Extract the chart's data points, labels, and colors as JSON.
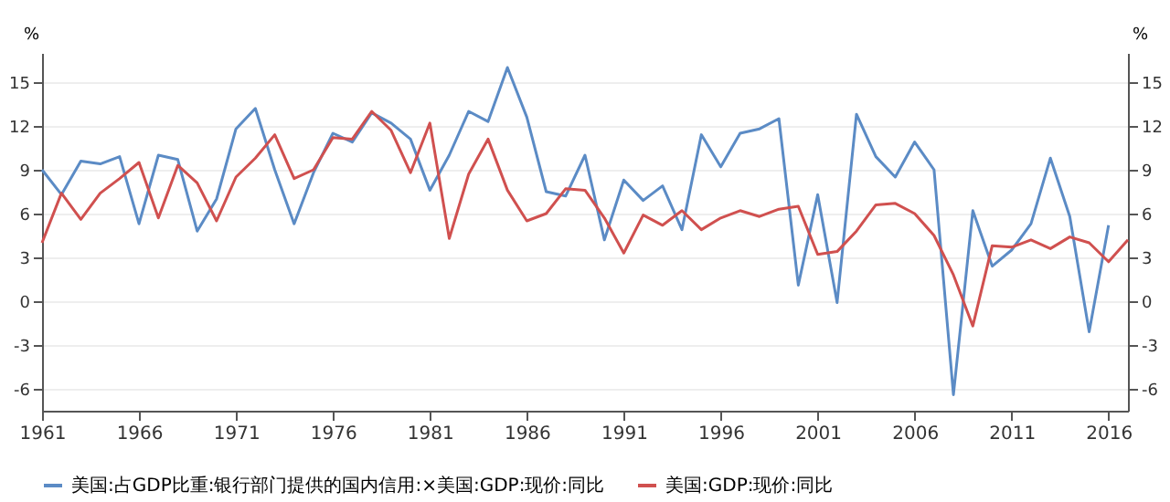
{
  "chart_data": {
    "type": "line",
    "ylabel": "%",
    "y2label": "%",
    "x": [
      1961,
      1962,
      1963,
      1964,
      1965,
      1966,
      1967,
      1968,
      1969,
      1970,
      1971,
      1972,
      1973,
      1974,
      1975,
      1976,
      1977,
      1978,
      1979,
      1980,
      1981,
      1982,
      1983,
      1984,
      1985,
      1986,
      1987,
      1988,
      1989,
      1990,
      1991,
      1992,
      1993,
      1994,
      1995,
      1996,
      1997,
      1998,
      1999,
      2000,
      2001,
      2002,
      2003,
      2004,
      2005,
      2006,
      2007,
      2008,
      2009,
      2010,
      2011,
      2012,
      2013,
      2014,
      2015,
      2016,
      2017
    ],
    "series": [
      {
        "name": "美国:占GDP比重:银行部门提供的国内信用:×美国:GDP:现价:同比",
        "color": "#5b8bc5",
        "values": [
          9.0,
          7.3,
          9.6,
          9.4,
          9.9,
          5.3,
          10.0,
          9.7,
          4.8,
          7.0,
          11.8,
          13.2,
          9.0,
          5.3,
          8.8,
          11.5,
          10.9,
          12.9,
          12.2,
          11.1,
          7.6,
          10.0,
          13.0,
          12.3,
          16.0,
          12.6,
          7.5,
          7.2,
          10.0,
          4.2,
          8.3,
          6.9,
          7.9,
          4.9,
          11.4,
          9.2,
          11.5,
          11.8,
          12.5,
          1.1,
          7.3,
          -0.1,
          12.8,
          9.9,
          8.5,
          10.9,
          9.0,
          -6.4,
          6.2,
          2.4,
          3.5,
          5.3,
          9.8,
          5.8,
          -2.1,
          5.2,
          null
        ]
      },
      {
        "name": "美国:GDP:现价:同比",
        "color": "#d0504f",
        "axis": "y2",
        "values": [
          4.0,
          7.4,
          5.6,
          7.4,
          8.4,
          9.5,
          5.7,
          9.3,
          8.1,
          5.5,
          8.5,
          9.8,
          11.4,
          8.4,
          9.0,
          11.2,
          11.1,
          13.0,
          11.7,
          8.8,
          12.2,
          4.3,
          8.7,
          11.1,
          7.6,
          5.5,
          6.0,
          7.7,
          7.6,
          5.7,
          3.3,
          5.9,
          5.2,
          6.2,
          4.9,
          5.7,
          6.2,
          5.8,
          6.3,
          6.5,
          3.2,
          3.4,
          4.8,
          6.6,
          6.7,
          6.0,
          4.5,
          1.8,
          -1.7,
          3.8,
          3.7,
          4.2,
          3.6,
          4.4,
          4.0,
          2.7,
          4.2
        ]
      }
    ],
    "xlim": [
      1961,
      2017
    ],
    "xticks": [
      1961,
      1966,
      1971,
      1976,
      1981,
      1986,
      1991,
      1996,
      2001,
      2006,
      2011,
      2016
    ],
    "ylim": [
      -7.5,
      17
    ],
    "yticks": [
      -6,
      -3,
      0,
      3,
      6,
      9,
      12,
      15
    ],
    "y2lim": [
      -7.5,
      17
    ],
    "y2ticks": [
      -6,
      -3,
      0,
      3,
      6,
      9,
      12,
      15
    ],
    "grid": "y",
    "legend": "bottom"
  }
}
